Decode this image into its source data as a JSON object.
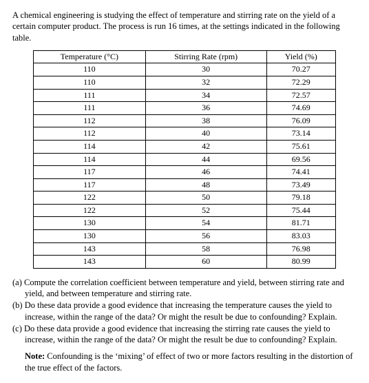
{
  "intro": "A chemical engineering is studying the effect of temperature and stirring rate on the yield of a certain computer product. The process is run 16 times, at the settings indicated in the following table.",
  "table": {
    "headers": [
      "Temperature (°C)",
      "Stirring Rate (rpm)",
      "Yield (%)"
    ],
    "rows": [
      [
        "110",
        "30",
        "70.27"
      ],
      [
        "110",
        "32",
        "72.29"
      ],
      [
        "111",
        "34",
        "72.57"
      ],
      [
        "111",
        "36",
        "74.69"
      ],
      [
        "112",
        "38",
        "76.09"
      ],
      [
        "112",
        "40",
        "73.14"
      ],
      [
        "114",
        "42",
        "75.61"
      ],
      [
        "114",
        "44",
        "69.56"
      ],
      [
        "117",
        "46",
        "74.41"
      ],
      [
        "117",
        "48",
        "73.49"
      ],
      [
        "122",
        "50",
        "79.18"
      ],
      [
        "122",
        "52",
        "75.44"
      ],
      [
        "130",
        "54",
        "81.71"
      ],
      [
        "130",
        "56",
        "83.03"
      ],
      [
        "143",
        "58",
        "76.98"
      ],
      [
        "143",
        "60",
        "80.99"
      ]
    ]
  },
  "questions": {
    "a": "(a) Compute the correlation coefficient between temperature and yield, between stirring rate and yield, and between temperature and stirring rate.",
    "b": "(b) Do these data provide a good evidence that increasing the temperature causes the yield to increase, within the range of the data? Or might the result be due to confounding? Explain.",
    "c": "(c) Do these data provide a good evidence that increasing the stirring rate causes the yield to increase, within the range of the data? Or might the result be due to confounding? Explain."
  },
  "note_label": "Note:",
  "note_body": " Confounding is the ‘mixing’ of effect of two or more factors resulting in the distortion of the true effect of the factors."
}
